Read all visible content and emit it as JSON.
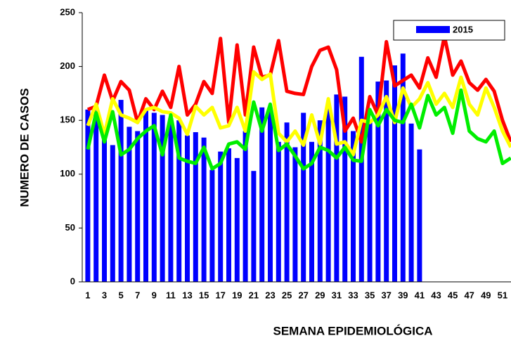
{
  "chart_data": {
    "type": "bar-line",
    "x_label": "SEMANA EPIDEMIOLÓGICA",
    "y_label": "NUMERO DE CASOS",
    "categories": [
      "1",
      null,
      "3",
      null,
      "5",
      null,
      "7",
      null,
      "9",
      null,
      "11",
      null,
      "13",
      null,
      "15",
      null,
      "17",
      null,
      "19",
      null,
      "21",
      null,
      "23",
      null,
      "25",
      null,
      "27",
      null,
      "29",
      null,
      "31",
      null,
      "33",
      null,
      "35",
      null,
      "37",
      null,
      "39",
      null,
      "41",
      null,
      "43",
      null,
      "45",
      null,
      "47",
      null,
      "49",
      null,
      "51",
      null
    ],
    "ylim": [
      0,
      250
    ],
    "yticks": [
      0,
      50,
      100,
      150,
      200,
      250
    ],
    "grid": false,
    "legend": "top-right",
    "bars": {
      "name": "2015",
      "color": "#0000ff",
      "values": [
        160,
        160,
        135,
        127,
        169,
        144,
        140,
        160,
        157,
        155,
        152,
        150,
        136,
        139,
        134,
        104,
        121,
        124,
        115,
        140,
        103,
        162,
        160,
        130,
        148,
        125,
        157,
        130,
        150,
        165,
        174,
        172,
        140,
        209,
        150,
        186,
        187,
        201,
        212,
        147,
        123
      ]
    },
    "series": [
      {
        "color": "#ff0000",
        "values": [
          160,
          163,
          192,
          168,
          186,
          178,
          148,
          170,
          160,
          177,
          162,
          200,
          155,
          165,
          186,
          175,
          226,
          148,
          220,
          155,
          218,
          190,
          192,
          224,
          177,
          175,
          174,
          200,
          215,
          218,
          197,
          140,
          152,
          130,
          172,
          155,
          223,
          182,
          187,
          192,
          180,
          208,
          190,
          228,
          192,
          205,
          185,
          178,
          188,
          177,
          150,
          130
        ]
      },
      {
        "color": "#ffff00",
        "values": [
          145,
          165,
          137,
          170,
          155,
          152,
          148,
          160,
          162,
          158,
          157,
          152,
          137,
          163,
          155,
          162,
          143,
          145,
          162,
          140,
          195,
          188,
          193,
          138,
          130,
          140,
          127,
          155,
          128,
          170,
          128,
          130,
          118,
          150,
          148,
          155,
          172,
          148,
          180,
          162,
          170,
          185,
          165,
          175,
          162,
          190,
          165,
          155,
          180,
          162,
          140,
          125
        ]
      },
      {
        "color": "#00ee00",
        "values": [
          123,
          157,
          130,
          158,
          118,
          123,
          133,
          140,
          145,
          118,
          155,
          115,
          112,
          110,
          125,
          105,
          110,
          128,
          130,
          123,
          167,
          140,
          165,
          122,
          128,
          117,
          105,
          110,
          125,
          122,
          115,
          125,
          113,
          112,
          160,
          145,
          160,
          150,
          148,
          165,
          143,
          173,
          155,
          162,
          138,
          178,
          140,
          133,
          130,
          140,
          110,
          115
        ]
      }
    ]
  }
}
